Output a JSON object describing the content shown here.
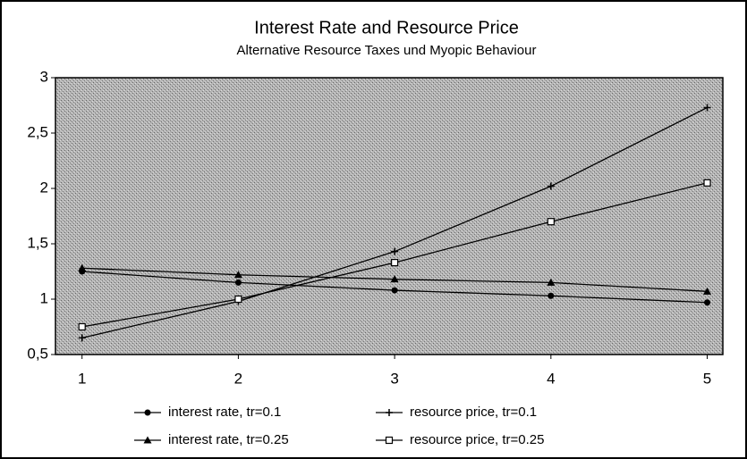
{
  "chart_data": {
    "type": "line",
    "title": "Interest Rate and Resource Price",
    "subtitle": "Alternative Resource Taxes und Myopic Behaviour",
    "x": [
      1,
      2,
      3,
      4,
      5
    ],
    "xlim": [
      0.83,
      5.1
    ],
    "xticks": [
      1,
      2,
      3,
      4,
      5
    ],
    "ylim": [
      0.5,
      3
    ],
    "yticks": [
      {
        "value": 0.5,
        "label": "0,5"
      },
      1,
      {
        "value": 1.5,
        "label": "1,5"
      },
      2,
      {
        "value": 2.5,
        "label": "2,5"
      },
      3
    ],
    "series": [
      {
        "name": "interest rate, tr=0.1",
        "color": "#000000",
        "marker": "circle",
        "values": [
          1.25,
          1.15,
          1.08,
          1.03,
          0.97
        ]
      },
      {
        "name": "resource price, tr=0.1",
        "color": "#000000",
        "marker": "plus",
        "values": [
          0.65,
          0.98,
          1.43,
          2.02,
          2.73
        ]
      },
      {
        "name": "interest rate, tr=0.25",
        "color": "#000000",
        "marker": "triangle",
        "values": [
          1.28,
          1.22,
          1.18,
          1.15,
          1.07
        ]
      },
      {
        "name": "resource price, tr=0.25",
        "color": "#000000",
        "marker": "square",
        "values": [
          0.75,
          1.0,
          1.33,
          1.7,
          2.05
        ]
      }
    ]
  }
}
